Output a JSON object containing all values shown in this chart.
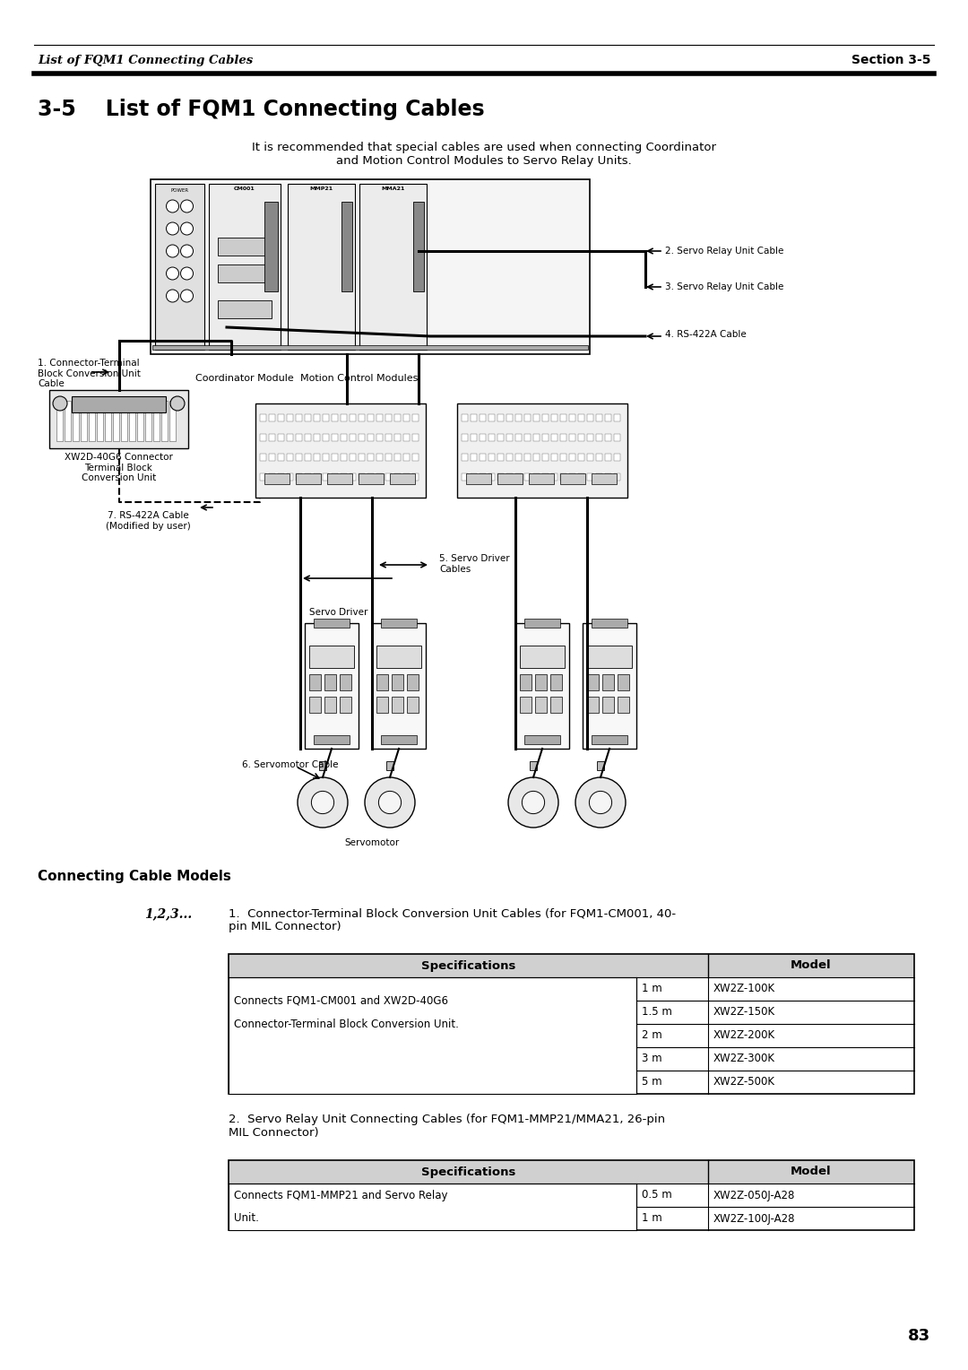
{
  "page_bg": "#ffffff",
  "header_left": "List of FQM1 Connecting Cables",
  "header_right": "Section 3-5",
  "section_title": "3-5    List of FQM1 Connecting Cables",
  "intro_text": "It is recommended that special cables are used when connecting Coordinator\nand Motion Control Modules to Servo Relay Units.",
  "connecting_cable_models_title": "Connecting Cable Models",
  "numbered_label": "1,2,3...",
  "item1_title": "1.  Connector-Terminal Block Conversion Unit Cables (for FQM1-CM001, 40-\npin MIL Connector)",
  "table1_headers": [
    "Specifications",
    "Model"
  ],
  "table1_desc_line1": "Connects FQM1-CM001 and XW2D-40G6",
  "table1_desc_line2": "Connector-Terminal Block Conversion Unit.",
  "table1_rows": [
    [
      "1 m",
      "XW2Z-100K"
    ],
    [
      "1.5 m",
      "XW2Z-150K"
    ],
    [
      "2 m",
      "XW2Z-200K"
    ],
    [
      "3 m",
      "XW2Z-300K"
    ],
    [
      "5 m",
      "XW2Z-500K"
    ]
  ],
  "item2_title": "2.  Servo Relay Unit Connecting Cables (for FQM1-MMP21/MMA21, 26-pin\nMIL Connector)",
  "table2_headers": [
    "Specifications",
    "Model"
  ],
  "table2_desc_line1": "Connects FQM1-MMP21 and Servo Relay",
  "table2_desc_line2": "Unit.",
  "table2_rows": [
    [
      "0.5 m",
      "XW2Z-050J-A28"
    ],
    [
      "1 m",
      "XW2Z-100J-A28"
    ]
  ],
  "page_number": "83",
  "lbl_coord": "Coordinator Module",
  "lbl_motion": "Motion Control Modules",
  "lbl_1": "1. Connector-Terminal\nBlock Conversion Unit\nCable",
  "lbl_2": "2. Servo Relay Unit Cable",
  "lbl_3": "3. Servo Relay Unit Cable",
  "lbl_4": "4. RS-422A Cable",
  "lbl_5": "5. Servo Driver\nCables",
  "lbl_6": "6. Servomotor Cable",
  "lbl_7": "7. RS-422A Cable\n(Modified by user)",
  "lbl_xw2d": "XW2D-40G6 Connector\nTerminal Block\nConversion Unit",
  "lbl_servo_driver": "Servo Driver",
  "lbl_servomotor": "Servomotor"
}
